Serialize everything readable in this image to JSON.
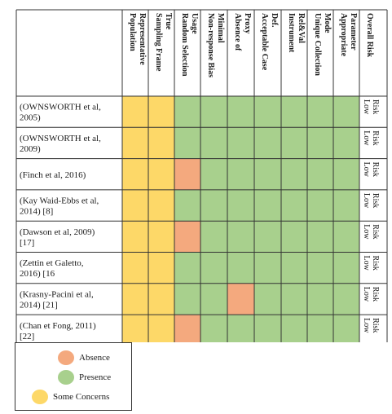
{
  "headers": [
    "Population Representative",
    "Sampling Frame True",
    "Random Selection Usage",
    "Non-response Bias Minimal",
    "Absence of Proxy",
    "Acceptable Case Def.",
    "Instrument Rel&Val",
    "Unique Collection Mode",
    "Appropriate Parameter",
    "Overall Risk"
  ],
  "rows": [
    {
      "study": "(OWNSWORTH et al, 2005)",
      "cells": [
        "C",
        "C",
        "P",
        "P",
        "P",
        "P",
        "P",
        "P",
        "P"
      ],
      "risk": "Low Risk"
    },
    {
      "study": "(OWNSWORTH et al, 2009)",
      "cells": [
        "C",
        "C",
        "P",
        "P",
        "P",
        "P",
        "P",
        "P",
        "P"
      ],
      "risk": "Low Risk"
    },
    {
      "study": "(Finch et al, 2016)",
      "cells": [
        "C",
        "C",
        "A",
        "P",
        "P",
        "P",
        "P",
        "P",
        "P"
      ],
      "risk": "Low Risk"
    },
    {
      "study": "(Kay Waid-Ebbs et al, 2014) [8]",
      "cells": [
        "C",
        "C",
        "P",
        "P",
        "P",
        "P",
        "P",
        "P",
        "P"
      ],
      "risk": "Low Risk"
    },
    {
      "study": "(Dawson et al, 2009) [17]",
      "cells": [
        "C",
        "C",
        "A",
        "P",
        "P",
        "P",
        "P",
        "P",
        "P"
      ],
      "risk": "Low Risk"
    },
    {
      "study": "(Zettin et Galetto, 2016) [16",
      "cells": [
        "C",
        "C",
        "P",
        "P",
        "P",
        "P",
        "P",
        "P",
        "P"
      ],
      "risk": "Low Risk"
    },
    {
      "study": "(Krasny-Pacini et al, 2014) [21]",
      "cells": [
        "C",
        "C",
        "P",
        "P",
        "A",
        "P",
        "P",
        "P",
        "P"
      ],
      "risk": "Low Risk"
    },
    {
      "study": "(Chan et Fong, 2011) [22]",
      "cells": [
        "C",
        "C",
        "A",
        "P",
        "P",
        "P",
        "P",
        "P",
        "P"
      ],
      "risk": "Low Risk"
    }
  ],
  "legend": [
    {
      "key": "A",
      "label": "Absence"
    },
    {
      "key": "P",
      "label": "Presence"
    },
    {
      "key": "C",
      "label": "Some Concerns"
    }
  ],
  "colors": {
    "A": "#f4a97e",
    "P": "#a8d08d",
    "C": "#fdd868",
    "grid": "#333333"
  }
}
